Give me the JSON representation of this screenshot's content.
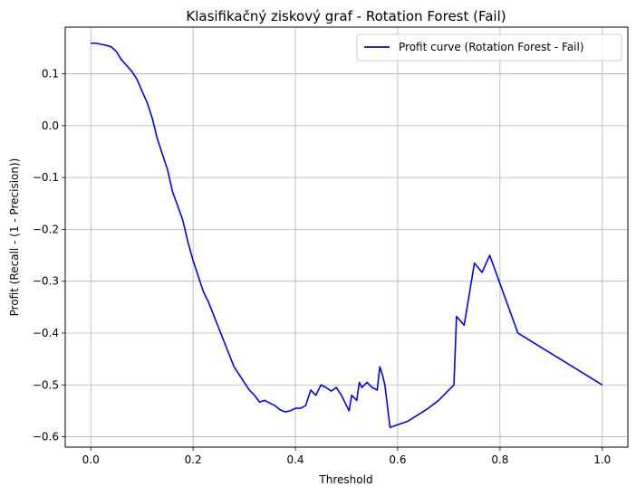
{
  "chart_data": {
    "type": "line",
    "title": "Klasifikačný ziskový graf - Rotation Forest (Fail)",
    "xlabel": "Threshold",
    "ylabel": "Profit (Recall - (1 - Precision))",
    "xlim": [
      -0.05,
      1.05
    ],
    "ylim": [
      -0.62,
      0.19
    ],
    "xticks": [
      0.0,
      0.2,
      0.4,
      0.6,
      0.8,
      1.0
    ],
    "xtick_labels": [
      "0.0",
      "0.2",
      "0.4",
      "0.6",
      "0.8",
      "1.0"
    ],
    "yticks": [
      0.1,
      0.0,
      -0.1,
      -0.2,
      -0.3,
      -0.4,
      -0.5,
      -0.6
    ],
    "ytick_labels": [
      "0.1",
      "0.0",
      "−0.1",
      "−0.2",
      "−0.3",
      "−0.4",
      "−0.5",
      "−0.6"
    ],
    "grid": true,
    "legend_position": "top-right",
    "series": [
      {
        "name": "Profit curve (Rotation Forest - Fail)",
        "color": "#0000ff",
        "points": [
          [
            0.0,
            0.159
          ],
          [
            0.01,
            0.159
          ],
          [
            0.02,
            0.157
          ],
          [
            0.03,
            0.155
          ],
          [
            0.04,
            0.152
          ],
          [
            0.05,
            0.143
          ],
          [
            0.06,
            0.127
          ],
          [
            0.07,
            0.116
          ],
          [
            0.08,
            0.105
          ],
          [
            0.09,
            0.09
          ],
          [
            0.1,
            0.067
          ],
          [
            0.11,
            0.045
          ],
          [
            0.12,
            0.015
          ],
          [
            0.13,
            -0.025
          ],
          [
            0.14,
            -0.055
          ],
          [
            0.15,
            -0.085
          ],
          [
            0.16,
            -0.128
          ],
          [
            0.17,
            -0.155
          ],
          [
            0.18,
            -0.183
          ],
          [
            0.19,
            -0.225
          ],
          [
            0.2,
            -0.26
          ],
          [
            0.21,
            -0.29
          ],
          [
            0.22,
            -0.32
          ],
          [
            0.23,
            -0.34
          ],
          [
            0.24,
            -0.365
          ],
          [
            0.25,
            -0.39
          ],
          [
            0.26,
            -0.415
          ],
          [
            0.27,
            -0.44
          ],
          [
            0.28,
            -0.465
          ],
          [
            0.29,
            -0.48
          ],
          [
            0.3,
            -0.495
          ],
          [
            0.31,
            -0.51
          ],
          [
            0.32,
            -0.52
          ],
          [
            0.33,
            -0.533
          ],
          [
            0.34,
            -0.53
          ],
          [
            0.35,
            -0.535
          ],
          [
            0.36,
            -0.54
          ],
          [
            0.37,
            -0.548
          ],
          [
            0.38,
            -0.552
          ],
          [
            0.39,
            -0.55
          ],
          [
            0.4,
            -0.545
          ],
          [
            0.41,
            -0.545
          ],
          [
            0.42,
            -0.54
          ],
          [
            0.43,
            -0.51
          ],
          [
            0.44,
            -0.52
          ],
          [
            0.45,
            -0.5
          ],
          [
            0.46,
            -0.505
          ],
          [
            0.47,
            -0.512
          ],
          [
            0.48,
            -0.505
          ],
          [
            0.49,
            -0.52
          ],
          [
            0.5,
            -0.54
          ],
          [
            0.505,
            -0.55
          ],
          [
            0.51,
            -0.52
          ],
          [
            0.52,
            -0.53
          ],
          [
            0.525,
            -0.495
          ],
          [
            0.53,
            -0.505
          ],
          [
            0.54,
            -0.495
          ],
          [
            0.55,
            -0.505
          ],
          [
            0.56,
            -0.51
          ],
          [
            0.565,
            -0.465
          ],
          [
            0.57,
            -0.48
          ],
          [
            0.575,
            -0.5
          ],
          [
            0.585,
            -0.582
          ],
          [
            0.62,
            -0.57
          ],
          [
            0.66,
            -0.545
          ],
          [
            0.68,
            -0.53
          ],
          [
            0.7,
            -0.51
          ],
          [
            0.71,
            -0.5
          ],
          [
            0.715,
            -0.368
          ],
          [
            0.73,
            -0.385
          ],
          [
            0.75,
            -0.265
          ],
          [
            0.765,
            -0.283
          ],
          [
            0.78,
            -0.25
          ],
          [
            0.835,
            -0.4
          ],
          [
            1.0,
            -0.5
          ]
        ]
      }
    ]
  }
}
